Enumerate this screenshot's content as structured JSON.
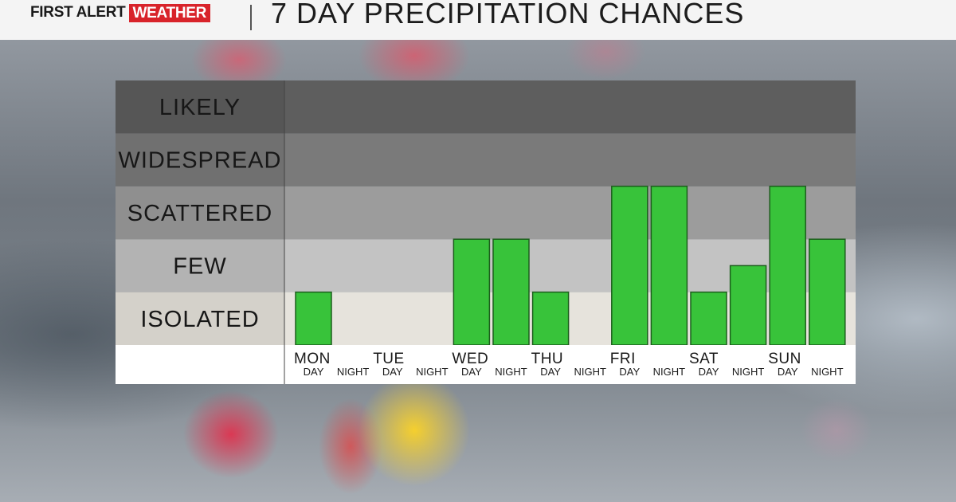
{
  "header": {
    "logo_first_alert": "FIRST ALERT",
    "logo_weather": "WEATHER",
    "title": "7 DAY PRECIPITATION CHANCES"
  },
  "colors": {
    "bar_fill": "#38c33a",
    "bar_stroke": "#1c5e1c",
    "logo_red": "#d8232a",
    "band_likely": "#5e5e5e",
    "band_widespread": "#7a7a7a",
    "band_scattered": "#9c9c9c",
    "band_few": "#c3c3c3",
    "band_isolated": "#e6e3dc"
  },
  "chart_data": {
    "type": "bar",
    "levels": [
      "ISOLATED",
      "FEW",
      "SCATTERED",
      "WIDESPREAD",
      "LIKELY"
    ],
    "days": [
      "MON",
      "TUE",
      "WED",
      "THU",
      "FRI",
      "SAT",
      "SUN"
    ],
    "periods": [
      "DAY",
      "NIGHT"
    ],
    "categories": [
      "MON DAY",
      "MON NIGHT",
      "TUE DAY",
      "TUE NIGHT",
      "WED DAY",
      "WED NIGHT",
      "THU DAY",
      "THU NIGHT",
      "FRI DAY",
      "FRI NIGHT",
      "SAT DAY",
      "SAT NIGHT",
      "SUN DAY",
      "SUN NIGHT"
    ],
    "values": [
      1,
      0,
      0,
      0,
      2,
      2,
      1,
      0,
      3,
      3,
      1,
      1.5,
      3,
      2
    ],
    "ylim": [
      0,
      5
    ],
    "grid": false,
    "legend": "none"
  }
}
